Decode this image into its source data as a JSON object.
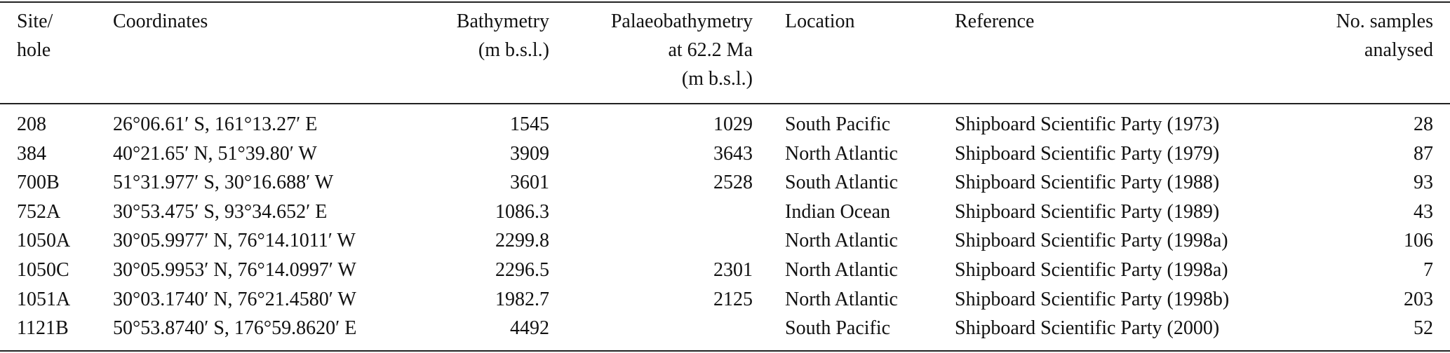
{
  "table": {
    "columns": [
      {
        "lines": [
          "Site/",
          "hole"
        ]
      },
      {
        "lines": [
          "Coordinates"
        ]
      },
      {
        "lines": [
          "Bathymetry",
          "(m b.s.l.)"
        ]
      },
      {
        "lines": [
          "Palaeobathymetry",
          "at 62.2 Ma",
          "(m b.s.l.)"
        ]
      },
      {
        "lines": [
          "Location"
        ]
      },
      {
        "lines": [
          "Reference"
        ]
      },
      {
        "lines": [
          "No. samples",
          "analysed"
        ]
      }
    ],
    "rows": [
      [
        "208",
        "26°06.61′ S, 161°13.27′ E",
        "1545",
        "1029",
        "South Pacific",
        "Shipboard Scientific Party (1973)",
        "28"
      ],
      [
        "384",
        "40°21.65′ N, 51°39.80′ W",
        "3909",
        "3643",
        "North Atlantic",
        "Shipboard Scientific Party (1979)",
        "87"
      ],
      [
        "700B",
        "51°31.977′ S, 30°16.688′ W",
        "3601",
        "2528",
        "South Atlantic",
        "Shipboard Scientific Party (1988)",
        "93"
      ],
      [
        "752A",
        "30°53.475′ S, 93°34.652′ E",
        "1086.3",
        null,
        "Indian Ocean",
        "Shipboard Scientific Party (1989)",
        "43"
      ],
      [
        "1050A",
        "30°05.9977′ N, 76°14.1011′ W",
        "2299.8",
        null,
        "North Atlantic",
        "Shipboard Scientific Party (1998a)",
        "106"
      ],
      [
        "1050C",
        "30°05.9953′ N, 76°14.0997′ W",
        "2296.5",
        "2301",
        "North Atlantic",
        "Shipboard Scientific Party (1998a)",
        "7"
      ],
      [
        "1051A",
        "30°03.1740′ N, 76°21.4580′ W",
        "1982.7",
        "2125",
        "North Atlantic",
        "Shipboard Scientific Party (1998b)",
        "203"
      ],
      [
        "1121B",
        "50°53.8740′ S, 176°59.8620′ E",
        "4492",
        null,
        "South Pacific",
        "Shipboard Scientific Party (2000)",
        "52"
      ]
    ]
  }
}
